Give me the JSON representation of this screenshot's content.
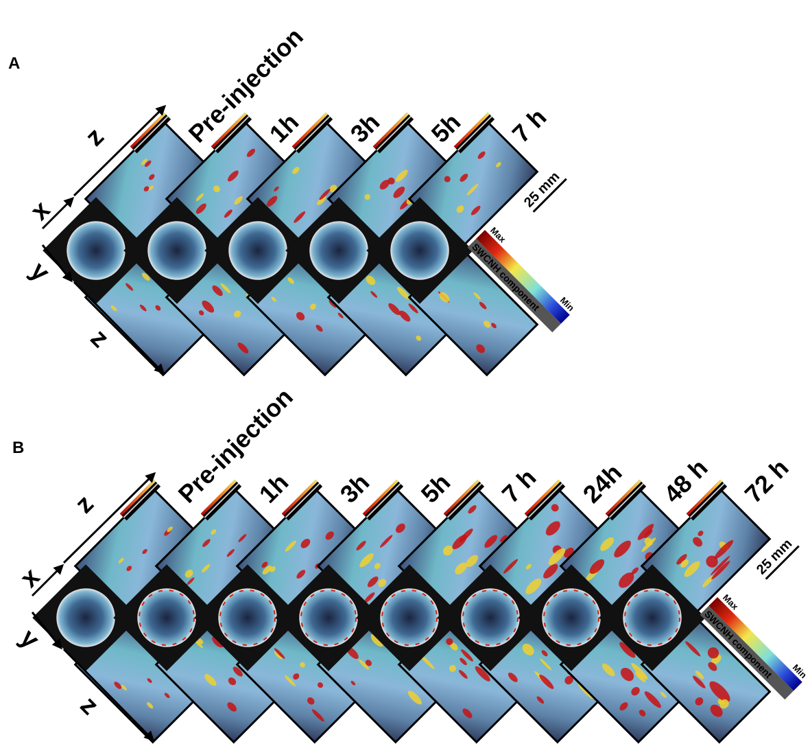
{
  "panels": [
    {
      "label": "A",
      "timepoints": [
        "Pre-injection",
        "1h",
        "3h",
        "5h",
        "7 h"
      ],
      "axes": {
        "top": "z",
        "left_top": "x",
        "left_bottom": "y",
        "bottom": "z"
      },
      "scale_bar": "25 mm",
      "colorbar": {
        "max": "Max",
        "min": "Min",
        "label": "SWCNH component"
      }
    },
    {
      "label": "B",
      "timepoints": [
        "Pre-injection",
        "1h",
        "3h",
        "5h",
        "7 h",
        "24h",
        "48 h",
        "72 h"
      ],
      "axes": {
        "top": "z",
        "left_top": "x",
        "left_bottom": "y",
        "bottom": "z"
      },
      "scale_bar": "25 mm",
      "colorbar": {
        "max": "Max",
        "min": "Min",
        "label": "SWCNH component"
      }
    }
  ]
}
